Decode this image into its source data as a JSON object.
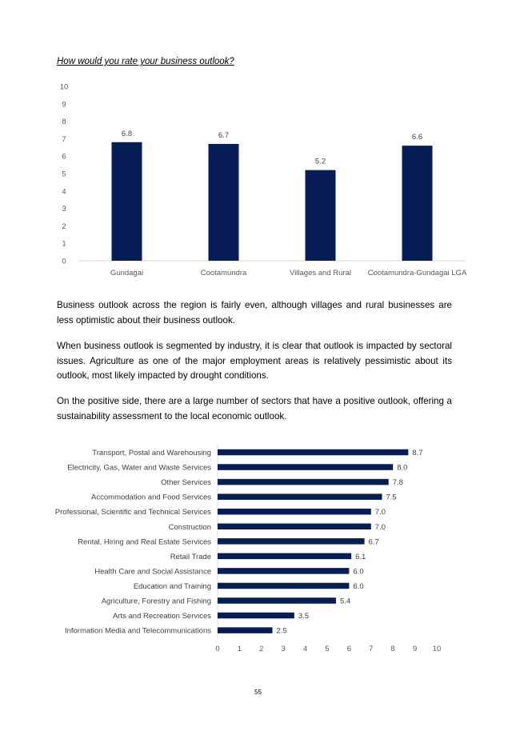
{
  "heading": "How would you rate your business outlook?",
  "chart_data": [
    {
      "type": "bar",
      "orientation": "vertical",
      "categories": [
        "Gundagai",
        "Cootamundra",
        "Villages and Rural",
        "Cootamundra-Gundagai LGA"
      ],
      "values": [
        6.8,
        6.7,
        5.2,
        6.6
      ],
      "data_labels": [
        "6.8",
        "6.7",
        "5.2",
        "6.6"
      ],
      "yticks": [
        "0",
        "1",
        "2",
        "3",
        "4",
        "5",
        "6",
        "7",
        "8",
        "9",
        "10"
      ],
      "ylim": [
        0,
        10
      ],
      "grid": false,
      "color": "#071d55"
    },
    {
      "type": "bar",
      "orientation": "horizontal",
      "categories": [
        "Transport, Postal and Warehousing",
        "Electricity, Gas, Water and Waste Services",
        "Other Services",
        "Accommodation and Food Services",
        "Professional, Scientific and Technical Services",
        "Construction",
        "Rental, Hiring and Real Estate Services",
        "Retail Trade",
        "Health Care and Social Assistance",
        "Education and Training",
        "Agriculture, Forestry and Fishing",
        "Arts and Recreation Services",
        "Information Media and Telecommunications"
      ],
      "values": [
        8.7,
        8.0,
        7.8,
        7.5,
        7.0,
        7.0,
        6.7,
        6.1,
        6.0,
        6.0,
        5.4,
        3.5,
        2.5
      ],
      "data_labels": [
        "8.7",
        "8.0",
        "7.8",
        "7.5",
        "7.0",
        "7.0",
        "6.7",
        "6.1",
        "6.0",
        "6.0",
        "5.4",
        "3.5",
        "2.5"
      ],
      "xticks": [
        "0",
        "1",
        "2",
        "3",
        "4",
        "5",
        "6",
        "7",
        "8",
        "9",
        "10"
      ],
      "xlim": [
        0,
        10
      ],
      "grid": false,
      "color": "#071d55"
    }
  ],
  "paragraphs": [
    "Business outlook across the region is fairly even, although villages and rural businesses are less optimistic about their business outlook.",
    "When business outlook is segmented by industry, it is clear that outlook is impacted by sectoral issues. Agriculture as one of the major employment areas is relatively pessimistic about its outlook, most likely impacted by drought conditions.",
    "On the positive side,  there are a large number of sectors that have a positive outlook,  offering a sustainability assessment to the local economic outlook."
  ],
  "page_number": "55"
}
